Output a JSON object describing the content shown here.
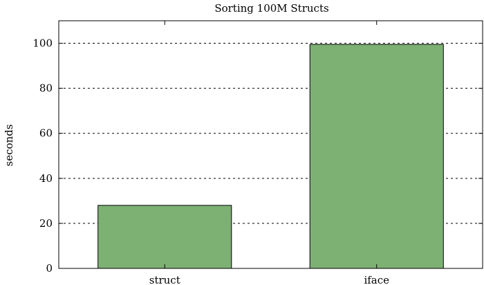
{
  "chart_data": {
    "type": "bar",
    "title": "Sorting 100M Structs",
    "xlabel": "",
    "ylabel": "seconds",
    "categories": [
      "struct",
      "iface"
    ],
    "values": [
      28,
      99.5
    ],
    "ylim": [
      0,
      110
    ],
    "yticks": [
      0,
      20,
      40,
      60,
      80,
      100
    ],
    "ytick_labels": [
      "0",
      "20",
      "40",
      "60",
      "80",
      "100"
    ],
    "grid": true,
    "bar_color": "#7db174"
  }
}
